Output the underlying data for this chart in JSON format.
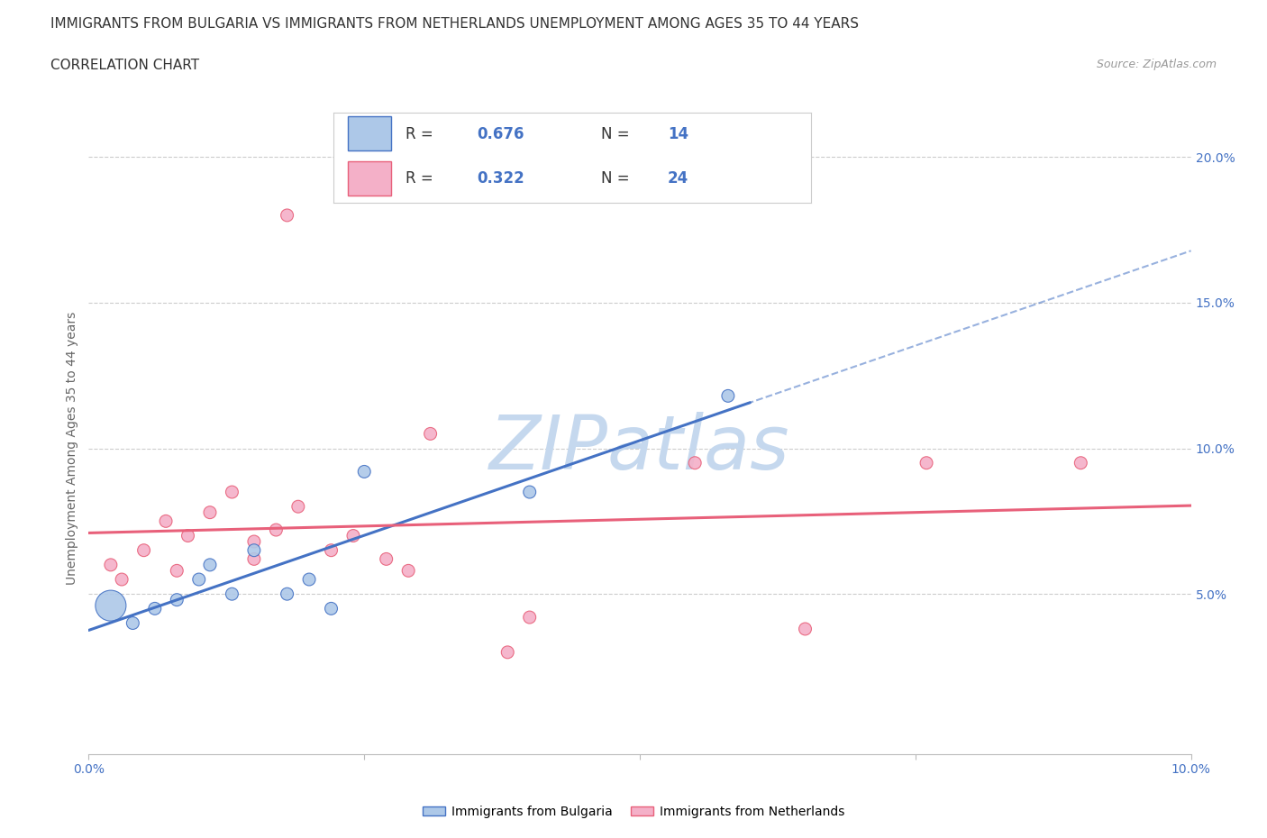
{
  "title_line1": "IMMIGRANTS FROM BULGARIA VS IMMIGRANTS FROM NETHERLANDS UNEMPLOYMENT AMONG AGES 35 TO 44 YEARS",
  "title_line2": "CORRELATION CHART",
  "source_text": "Source: ZipAtlas.com",
  "ylabel": "Unemployment Among Ages 35 to 44 years",
  "watermark": "ZIPatlas",
  "legend_label_bulgaria": "Immigrants from Bulgaria",
  "legend_label_netherlands": "Immigrants from Netherlands",
  "R_bulgaria": 0.676,
  "N_bulgaria": 14,
  "R_netherlands": 0.322,
  "N_netherlands": 24,
  "color_bulgaria": "#adc8e8",
  "color_netherlands": "#f4b0c8",
  "color_line_bulgaria": "#4472c4",
  "color_line_netherlands": "#e8607a",
  "xlim": [
    0.0,
    0.1
  ],
  "ylim": [
    -0.005,
    0.205
  ],
  "yticks_right": [
    0.0,
    0.05,
    0.1,
    0.15,
    0.2
  ],
  "ytick_labels_right": [
    "",
    "5.0%",
    "10.0%",
    "15.0%",
    "20.0%"
  ],
  "bulgaria_x": [
    0.002,
    0.004,
    0.006,
    0.008,
    0.01,
    0.011,
    0.013,
    0.015,
    0.018,
    0.02,
    0.022,
    0.025,
    0.04,
    0.058
  ],
  "bulgaria_y": [
    0.046,
    0.04,
    0.045,
    0.048,
    0.055,
    0.06,
    0.05,
    0.065,
    0.05,
    0.055,
    0.045,
    0.092,
    0.085,
    0.118
  ],
  "bulgaria_size": [
    600,
    100,
    100,
    100,
    100,
    100,
    100,
    100,
    100,
    100,
    100,
    100,
    100,
    100
  ],
  "netherlands_x": [
    0.002,
    0.003,
    0.005,
    0.007,
    0.008,
    0.009,
    0.011,
    0.013,
    0.015,
    0.017,
    0.019,
    0.022,
    0.024,
    0.027,
    0.029,
    0.031,
    0.015,
    0.018,
    0.038,
    0.055,
    0.065,
    0.076,
    0.09,
    0.04
  ],
  "netherlands_y": [
    0.06,
    0.055,
    0.065,
    0.075,
    0.058,
    0.07,
    0.078,
    0.085,
    0.068,
    0.072,
    0.08,
    0.065,
    0.07,
    0.062,
    0.058,
    0.105,
    0.062,
    0.18,
    0.03,
    0.095,
    0.038,
    0.095,
    0.095,
    0.042
  ],
  "netherlands_size": [
    100,
    100,
    100,
    100,
    100,
    100,
    100,
    100,
    100,
    100,
    100,
    100,
    100,
    100,
    100,
    100,
    100,
    100,
    100,
    100,
    100,
    100,
    100,
    100
  ],
  "title_fontsize": 11,
  "axis_fontsize": 10,
  "tick_fontsize": 10,
  "watermark_fontsize": 60,
  "watermark_color": "#c5d8ee",
  "background_color": "#ffffff",
  "grid_color": "#cccccc"
}
